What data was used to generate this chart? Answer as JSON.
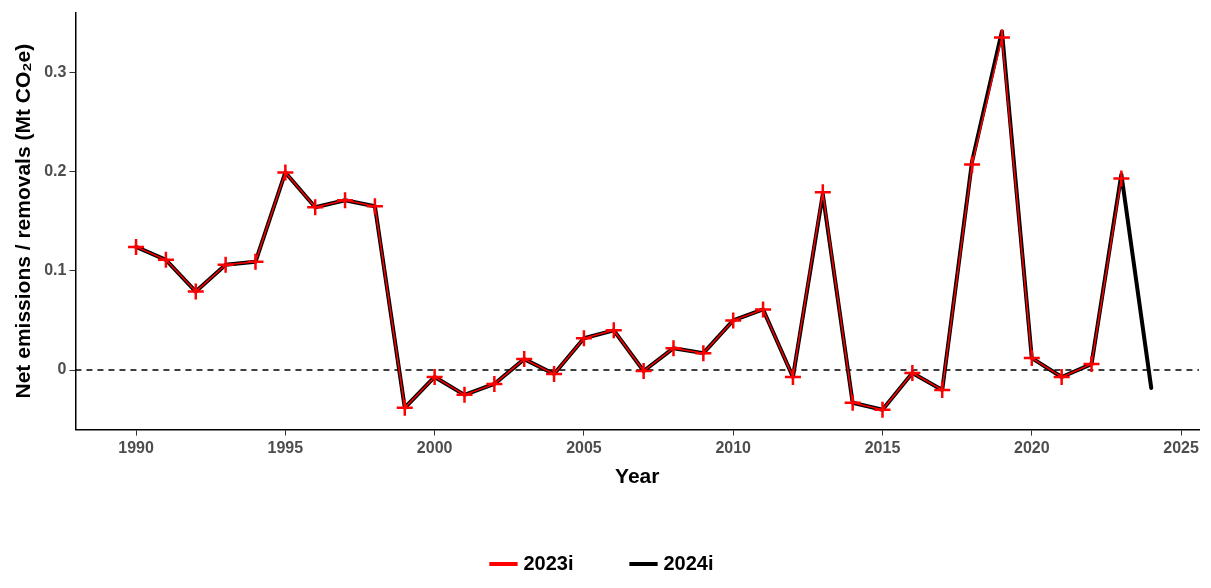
{
  "chart_data": {
    "type": "line",
    "xlabel": "Year",
    "ylabel": "Net emissions / removals (Mt CO₂e)",
    "xlim": [
      1987.97,
      2025.6
    ],
    "xticks": [
      1990,
      1995,
      2000,
      2005,
      2010,
      2015,
      2020,
      2025
    ],
    "ylim": [
      -0.06,
      0.36
    ],
    "yticks": [
      0,
      0.1,
      0.2,
      0.3
    ],
    "grid": false,
    "legend": "bottom",
    "line_style": "solid",
    "ref_lines": [
      {
        "axis": "y",
        "value": 0,
        "line_style": "dashed",
        "color": "#000000"
      }
    ],
    "series": [
      {
        "name": "2023i",
        "color": "#ff0000",
        "marker": "cross",
        "x": [
          1990,
          1991,
          1992,
          1993,
          1994,
          1995,
          1996,
          1997,
          1998,
          1999,
          2000,
          2001,
          2002,
          2003,
          2004,
          2005,
          2006,
          2007,
          2008,
          2009,
          2010,
          2011,
          2012,
          2013,
          2014,
          2015,
          2016,
          2017,
          2018,
          2019,
          2020,
          2021,
          2022,
          2023
        ],
        "values": [
          0.124,
          0.111,
          0.079,
          0.106,
          0.109,
          0.199,
          0.164,
          0.171,
          0.165,
          -0.038,
          -0.007,
          -0.025,
          -0.014,
          0.011,
          -0.004,
          0.032,
          0.04,
          -0.001,
          0.022,
          0.017,
          0.05,
          0.061,
          -0.007,
          0.179,
          -0.033,
          -0.04,
          -0.003,
          -0.02,
          0.207,
          0.335,
          0.012,
          -0.007,
          0.006,
          0.193
        ]
      },
      {
        "name": "2024i",
        "color": "#000000",
        "x": [
          1990,
          1991,
          1992,
          1993,
          1994,
          1995,
          1996,
          1997,
          1998,
          1999,
          2000,
          2001,
          2002,
          2003,
          2004,
          2005,
          2006,
          2007,
          2008,
          2009,
          2010,
          2011,
          2012,
          2013,
          2014,
          2015,
          2016,
          2017,
          2018,
          2019,
          2020,
          2021,
          2022,
          2023,
          2024
        ],
        "values": [
          0.124,
          0.111,
          0.079,
          0.106,
          0.109,
          0.199,
          0.164,
          0.171,
          0.165,
          -0.038,
          -0.007,
          -0.025,
          -0.014,
          0.011,
          -0.004,
          0.032,
          0.04,
          -0.001,
          0.022,
          0.017,
          0.05,
          0.061,
          -0.007,
          0.177,
          -0.033,
          -0.04,
          -0.003,
          -0.02,
          0.21,
          0.341,
          0.012,
          -0.007,
          0.006,
          0.197,
          -0.018
        ]
      }
    ]
  }
}
